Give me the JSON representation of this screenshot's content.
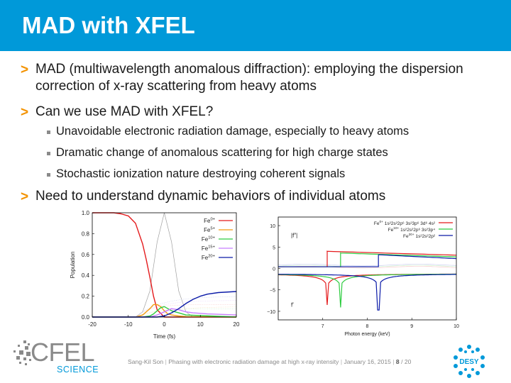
{
  "title": "MAD with XFEL",
  "bullets": {
    "b1_line1": "MAD (multiwavelength anomalous diffraction): employing the dispersion",
    "b1_line2": "correction of x-ray scattering from heavy atoms",
    "b2": "Can we use MAD with XFEL?",
    "sub1": "Unavoidable electronic radiation damage, especially to heavy atoms",
    "sub2": "Dramatic change of anomalous scattering for high charge states",
    "sub3": "Stochastic ionization nature destroying coherent signals",
    "b3": "Need to understand dynamic behaviors of individual atoms",
    "marker": ">"
  },
  "chart_data": [
    {
      "type": "line",
      "xlabel": "Time (fs)",
      "ylabel": "Population",
      "xlim": [
        -20,
        20
      ],
      "ylim": [
        0,
        1.0
      ],
      "xticks": [
        "-20",
        "-10",
        "0",
        "10",
        "20"
      ],
      "yticks": [
        "0.0",
        "0.2",
        "0.4",
        "0.6",
        "0.8",
        "1.0"
      ],
      "legend_position": "top-right",
      "series": [
        {
          "name": "Fe0+",
          "base": "Fe",
          "sup": "0+",
          "color": "#e41a1c",
          "x": [
            -20,
            -14,
            -12,
            -10,
            -8,
            -6,
            -5,
            -4,
            -3,
            -2,
            0,
            20
          ],
          "y": [
            1.0,
            1.0,
            0.99,
            0.97,
            0.9,
            0.7,
            0.55,
            0.38,
            0.2,
            0.07,
            0.0,
            0.0
          ]
        },
        {
          "name": "Fe5+",
          "base": "Fe",
          "sup": "5+",
          "color": "#f39c12",
          "x": [
            -20,
            -8,
            -6,
            -4,
            -3,
            -2,
            -1,
            0,
            1,
            2,
            4,
            6,
            20
          ],
          "y": [
            0.0,
            0.0,
            0.02,
            0.08,
            0.12,
            0.12,
            0.1,
            0.06,
            0.03,
            0.02,
            0.01,
            0.005,
            0.0
          ]
        },
        {
          "name": "Fe10+",
          "base": "Fe",
          "sup": "10+",
          "color": "#2ecc40",
          "x": [
            -20,
            -6,
            -4,
            -3,
            -2,
            -1,
            0,
            1,
            2,
            3,
            4,
            6,
            20
          ],
          "y": [
            0.0,
            0.0,
            0.01,
            0.03,
            0.06,
            0.09,
            0.1,
            0.08,
            0.06,
            0.05,
            0.04,
            0.02,
            0.0
          ]
        },
        {
          "name": "Fe15+",
          "base": "Fe",
          "sup": "15+",
          "color": "#c77dff",
          "x": [
            -20,
            -4,
            -2,
            0,
            2,
            4,
            6,
            8,
            12,
            20
          ],
          "y": [
            0.0,
            0.0,
            0.02,
            0.05,
            0.08,
            0.07,
            0.05,
            0.04,
            0.03,
            0.02
          ]
        },
        {
          "name": "Fe20+",
          "base": "Fe",
          "sup": "20+",
          "color": "#0a1aa8",
          "x": [
            -20,
            -2,
            0,
            2,
            4,
            6,
            8,
            10,
            12,
            15,
            20
          ],
          "y": [
            0.0,
            0.0,
            0.01,
            0.04,
            0.08,
            0.13,
            0.17,
            0.2,
            0.22,
            0.235,
            0.245
          ]
        }
      ],
      "annotation_curves": [
        {
          "color": "#a0a0a0",
          "style": "solid",
          "x": [
            -20,
            -8,
            -6,
            -4,
            -2,
            0,
            2,
            4,
            6,
            8,
            20
          ],
          "y": [
            0.0,
            0.0,
            0.05,
            0.25,
            0.72,
            1.0,
            0.72,
            0.25,
            0.05,
            0.0,
            0.0
          ]
        }
      ]
    },
    {
      "type": "line",
      "xlabel": "Photon energy (keV)",
      "xlim": [
        6.0,
        10.0
      ],
      "ylim": [
        -12,
        12
      ],
      "xticks": [
        "7",
        "8",
        "9",
        "10"
      ],
      "yticks": [
        "-10",
        "-5",
        "0",
        "5",
        "10"
      ],
      "inner_labels": {
        "f2": "|f″|",
        "f1": "f′"
      },
      "legend_position": "top-right",
      "series": [
        {
          "name": "Fe0+ 1s22s22p63s23p63d64s2",
          "base": "Fe",
          "sup": "0+",
          "config": "1s²2s²2p⁶ 3s²3p⁶ 3d⁶ 4s²",
          "color": "#e41a1c",
          "edge": 7.1
        },
        {
          "name": "Fe10+ 1s22s22p63s23p4",
          "base": "Fe",
          "sup": "10+",
          "config": "1s²2s²2p⁶ 3s²3p⁴",
          "color": "#2ecc40",
          "edge": 7.4
        },
        {
          "name": "Fe20+ 1s22s22p2",
          "base": "Fe",
          "sup": "20+",
          "config": "1s²2s²2p²",
          "color": "#0a1aa8",
          "edge": 8.25
        }
      ]
    }
  ],
  "footer": {
    "author": "Sang-Kil Son",
    "talk": "Phasing with electronic radiation damage at high x-ray intensity",
    "date": "January 16, 2015",
    "page": "8",
    "total": "/ 20",
    "sep": "|"
  },
  "logos": {
    "cfel": "CFEL",
    "cfel_sub": "SCIENCE",
    "desy": "DESY"
  },
  "colors": {
    "accent": "#0099d9",
    "marker": "#f39200"
  }
}
